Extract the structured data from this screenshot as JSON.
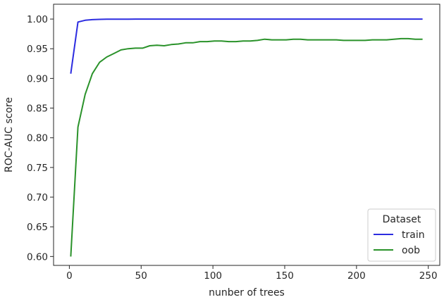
{
  "chart_data": {
    "type": "line",
    "title": "",
    "xlabel": "nunber of trees",
    "ylabel": "ROC-AUC score",
    "xlim": [
      -11,
      258
    ],
    "ylim": [
      0.585,
      1.025
    ],
    "xticks": [
      0,
      50,
      100,
      150,
      200,
      250
    ],
    "yticks": [
      0.6,
      0.65,
      0.7,
      0.75,
      0.8,
      0.85,
      0.9,
      0.95,
      1.0
    ],
    "grid": false,
    "legend": {
      "title": "Dataset",
      "placement": "lower-right"
    },
    "series": [
      {
        "name": "train",
        "color": "#2c2ce0",
        "x": [
          1,
          6,
          11,
          16,
          21,
          26,
          31,
          36,
          41,
          46,
          51,
          56,
          61,
          66,
          71,
          76,
          81,
          86,
          91,
          96,
          101,
          106,
          111,
          116,
          121,
          126,
          131,
          136,
          141,
          146,
          151,
          156,
          161,
          166,
          171,
          176,
          181,
          186,
          191,
          196,
          201,
          206,
          211,
          216,
          221,
          226,
          231,
          236,
          241,
          246
        ],
        "values": [
          0.908,
          0.995,
          0.998,
          0.999,
          0.9995,
          0.9997,
          0.9998,
          0.9999,
          0.9999,
          1.0,
          1.0,
          1.0,
          1.0,
          1.0,
          1.0,
          1.0,
          1.0,
          1.0,
          1.0,
          1.0,
          1.0,
          1.0,
          1.0,
          1.0,
          1.0,
          1.0,
          1.0,
          1.0,
          1.0,
          1.0,
          1.0,
          1.0,
          1.0,
          1.0,
          1.0,
          1.0,
          1.0,
          1.0,
          1.0,
          1.0,
          1.0,
          1.0,
          1.0,
          1.0,
          1.0,
          1.0,
          1.0,
          1.0,
          1.0,
          1.0
        ]
      },
      {
        "name": "oob",
        "color": "#2a922a",
        "x": [
          1,
          6,
          11,
          16,
          21,
          26,
          31,
          36,
          41,
          46,
          51,
          56,
          61,
          66,
          71,
          76,
          81,
          86,
          91,
          96,
          101,
          106,
          111,
          116,
          121,
          126,
          131,
          136,
          141,
          146,
          151,
          156,
          161,
          166,
          171,
          176,
          181,
          186,
          191,
          196,
          201,
          206,
          211,
          216,
          221,
          226,
          231,
          236,
          241,
          246
        ],
        "values": [
          0.6,
          0.818,
          0.873,
          0.908,
          0.927,
          0.936,
          0.942,
          0.948,
          0.95,
          0.951,
          0.951,
          0.955,
          0.956,
          0.955,
          0.957,
          0.958,
          0.96,
          0.96,
          0.962,
          0.962,
          0.963,
          0.963,
          0.962,
          0.962,
          0.963,
          0.963,
          0.964,
          0.966,
          0.965,
          0.965,
          0.965,
          0.966,
          0.966,
          0.965,
          0.965,
          0.965,
          0.965,
          0.965,
          0.964,
          0.964,
          0.964,
          0.964,
          0.965,
          0.965,
          0.965,
          0.966,
          0.967,
          0.967,
          0.966,
          0.966
        ]
      }
    ]
  }
}
